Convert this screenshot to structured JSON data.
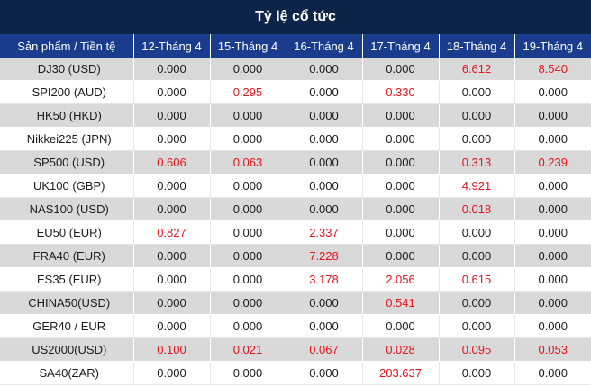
{
  "title": "Tỷ lệ cổ tức",
  "header": {
    "product": "Sản phẩm / Tiền tệ",
    "dates": [
      "12-Tháng 4",
      "15-Tháng 4",
      "16-Tháng 4",
      "17-Tháng 4",
      "18-Tháng 4",
      "19-Tháng 4"
    ]
  },
  "colors": {
    "title_bg": "#0d2347",
    "header_bg": "#1a3c8c",
    "positive": "#e4141b",
    "row_alt": "#d9d9d9"
  },
  "rows": [
    {
      "name": "DJ30 (USD)",
      "values": [
        "0.000",
        "0.000",
        "0.000",
        "0.000",
        "6.612",
        "8.540"
      ]
    },
    {
      "name": "SPI200 (AUD)",
      "values": [
        "0.000",
        "0.295",
        "0.000",
        "0.330",
        "0.000",
        "0.000"
      ]
    },
    {
      "name": "HK50 (HKD)",
      "values": [
        "0.000",
        "0.000",
        "0.000",
        "0.000",
        "0.000",
        "0.000"
      ]
    },
    {
      "name": "Nikkei225 (JPN)",
      "values": [
        "0.000",
        "0.000",
        "0.000",
        "0.000",
        "0.000",
        "0.000"
      ]
    },
    {
      "name": "SP500 (USD)",
      "values": [
        "0.606",
        "0.063",
        "0.000",
        "0.000",
        "0.313",
        "0.239"
      ]
    },
    {
      "name": "UK100 (GBP)",
      "values": [
        "0.000",
        "0.000",
        "0.000",
        "0.000",
        "4.921",
        "0.000"
      ]
    },
    {
      "name": "NAS100 (USD)",
      "values": [
        "0.000",
        "0.000",
        "0.000",
        "0.000",
        "0.018",
        "0.000"
      ]
    },
    {
      "name": "EU50 (EUR)",
      "values": [
        "0.827",
        "0.000",
        "2.337",
        "0.000",
        "0.000",
        "0.000"
      ]
    },
    {
      "name": "FRA40 (EUR)",
      "values": [
        "0.000",
        "0.000",
        "7.228",
        "0.000",
        "0.000",
        "0.000"
      ]
    },
    {
      "name": "ES35 (EUR)",
      "values": [
        "0.000",
        "0.000",
        "3.178",
        "2.056",
        "0.615",
        "0.000"
      ]
    },
    {
      "name": "CHINA50(USD)",
      "values": [
        "0.000",
        "0.000",
        "0.000",
        "0.541",
        "0.000",
        "0.000"
      ]
    },
    {
      "name": "GER40 / EUR",
      "values": [
        "0.000",
        "0.000",
        "0.000",
        "0.000",
        "0.000",
        "0.000"
      ]
    },
    {
      "name": "US2000(USD)",
      "values": [
        "0.100",
        "0.021",
        "0.067",
        "0.028",
        "0.095",
        "0.053"
      ]
    },
    {
      "name": "SA40(ZAR)",
      "values": [
        "0.000",
        "0.000",
        "0.000",
        "203.637",
        "0.000",
        "0.000"
      ]
    }
  ]
}
